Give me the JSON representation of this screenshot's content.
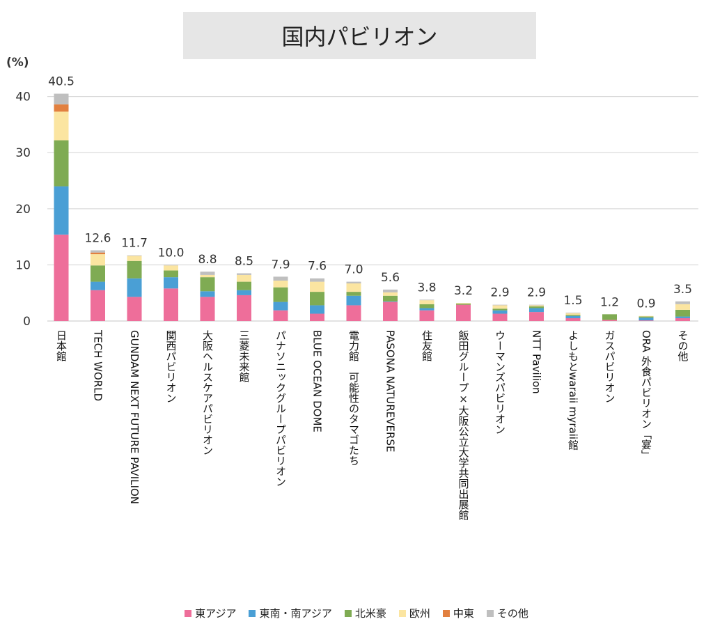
{
  "chart_data": {
    "type": "bar",
    "stacked": true,
    "title": "国内パビリオン",
    "ylabel": "(%)",
    "ylim": [
      0,
      40
    ],
    "yticks": [
      0,
      10,
      20,
      30,
      40
    ],
    "grid": true,
    "legend_position": "bottom",
    "categories": [
      "日本館",
      "TECH WORLD",
      "GUNDAM NEXT FUTURE PAVILION",
      "関西パビリオン",
      "大阪ヘルスケアパビリオン",
      "三菱未来館",
      "パナソニックグループパビリオン",
      "BLUE OCEAN DOME",
      "電力館　可能性のタマゴたち",
      "PASONA NATUREVERSE",
      "住友館",
      "飯田グループ×大阪公立大学共同出展館",
      "ウーマンズパビリオン",
      "NTT Pavilion",
      "よしもとwaraii myraii館",
      "ガスパビリオン",
      "ORA 外食パビリオン「宴」",
      "その他"
    ],
    "totals": [
      "40.5",
      "12.6",
      "11.7",
      "10.0",
      "8.8",
      "8.5",
      "7.9",
      "7.6",
      "7.0",
      "5.6",
      "3.8",
      "3.2",
      "2.9",
      "2.9",
      "1.5",
      "1.2",
      "0.9",
      "3.5"
    ],
    "series": [
      {
        "name": "東アジア",
        "color": "#EE6E9A",
        "values": [
          15.4,
          5.5,
          4.3,
          5.8,
          4.3,
          4.6,
          1.9,
          1.3,
          2.8,
          3.4,
          1.9,
          2.9,
          1.3,
          1.6,
          0.5,
          0.2,
          0.1,
          0.5
        ]
      },
      {
        "name": "東南・南アジア",
        "color": "#4A9FD5",
        "values": [
          8.6,
          1.5,
          3.3,
          2.0,
          1.0,
          0.9,
          1.5,
          1.5,
          1.7,
          0.1,
          0.4,
          0.0,
          0.6,
          0.7,
          0.4,
          0.0,
          0.5,
          0.3
        ]
      },
      {
        "name": "北米豪",
        "color": "#7FAB53",
        "values": [
          8.2,
          2.9,
          3.1,
          1.2,
          2.5,
          1.5,
          2.6,
          2.4,
          0.7,
          1.0,
          0.7,
          0.2,
          0.3,
          0.3,
          0.2,
          1.0,
          0.2,
          1.2
        ]
      },
      {
        "name": "欧州",
        "color": "#FBE5A1",
        "values": [
          5.1,
          2.0,
          0.9,
          0.9,
          0.4,
          1.2,
          1.2,
          1.8,
          1.5,
          0.6,
          0.7,
          0.1,
          0.6,
          0.2,
          0.3,
          0.0,
          0.1,
          1.0
        ]
      },
      {
        "name": "中東",
        "color": "#E2803F",
        "values": [
          1.3,
          0.3,
          0.0,
          0.0,
          0.0,
          0.0,
          0.0,
          0.0,
          0.0,
          0.0,
          0.0,
          0.0,
          0.0,
          0.0,
          0.0,
          0.0,
          0.0,
          0.0
        ]
      },
      {
        "name": "その他",
        "color": "#BFBFBF",
        "values": [
          1.9,
          0.4,
          0.1,
          0.1,
          0.6,
          0.3,
          0.7,
          0.6,
          0.3,
          0.5,
          0.1,
          0.0,
          0.1,
          0.1,
          0.1,
          0.0,
          0.0,
          0.5
        ]
      }
    ]
  }
}
